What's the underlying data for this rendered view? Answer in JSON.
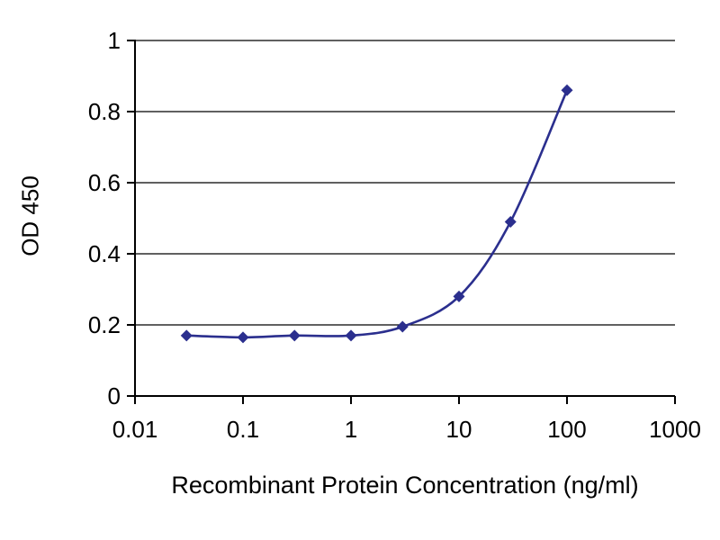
{
  "chart_data": {
    "type": "line",
    "title": "",
    "xlabel": "Recombinant Protein Concentration (ng/ml)",
    "ylabel": "OD 450",
    "x_scale": "log",
    "xlim": [
      0.01,
      1000
    ],
    "ylim": [
      0,
      1
    ],
    "x_ticks": [
      0.01,
      0.1,
      1,
      10,
      100,
      1000
    ],
    "x_tick_labels": [
      "0.01",
      "0.1",
      "1",
      "10",
      "100",
      "1000"
    ],
    "y_ticks": [
      0,
      0.2,
      0.4,
      0.6,
      0.8,
      1
    ],
    "y_tick_labels": [
      "0",
      "0.2",
      "0.4",
      "0.6",
      "0.8",
      "1"
    ],
    "grid": "horizontal",
    "legend": "none",
    "series": [
      {
        "name": "OD 450",
        "x": [
          0.03,
          0.1,
          0.3,
          1,
          3,
          10,
          30,
          100
        ],
        "y": [
          0.17,
          0.165,
          0.17,
          0.17,
          0.195,
          0.28,
          0.49,
          0.86
        ],
        "color": "#2b2f8e",
        "marker": "diamond"
      }
    ],
    "colors": {
      "axis": "#000000",
      "grid": "#000000",
      "background": "#ffffff",
      "text": "#000000"
    }
  }
}
